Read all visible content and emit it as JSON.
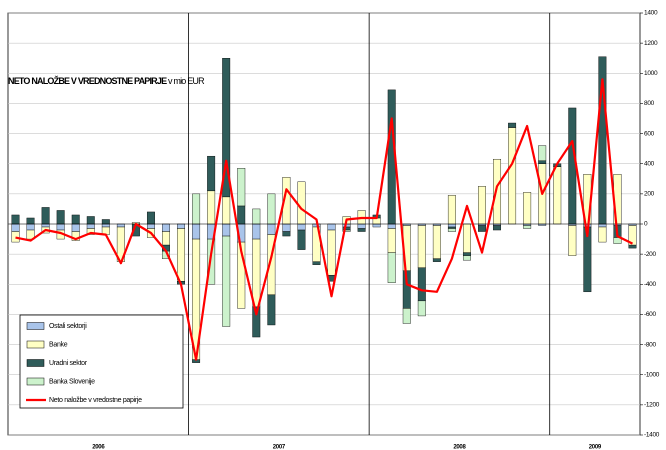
{
  "chart_data": {
    "type": "bar",
    "title": "NETO NALOŽBE V VREDNOSTNE PAPIRJE",
    "subtitle": "v mio EUR",
    "categories": [
      null,
      null,
      null,
      null,
      null,
      null,
      null,
      null,
      null,
      null,
      null,
      null,
      null,
      null,
      null,
      null,
      null,
      null,
      null,
      null,
      null,
      null,
      null,
      null,
      null,
      null,
      null,
      null,
      null,
      null,
      null,
      null,
      null,
      null,
      null,
      null,
      null,
      null,
      null,
      null,
      null,
      null
    ],
    "x_groups": [
      {
        "label": "2006",
        "size": 12
      },
      {
        "label": "2007",
        "size": 12
      },
      {
        "label": "2008",
        "size": 12
      },
      {
        "label": "2009",
        "size": 6
      }
    ],
    "ylim": [
      -1400,
      1400
    ],
    "yticks": [
      -1400,
      -1200,
      -1000,
      -800,
      -600,
      -400,
      -200,
      0,
      200,
      400,
      600,
      800,
      1000,
      1200,
      1400
    ],
    "grid": true,
    "series": [
      {
        "name": "Ostali sektorji",
        "color": "#a9c4ea",
        "values": [
          -50,
          -40,
          -20,
          -40,
          -50,
          -30,
          -20,
          -20,
          0,
          -30,
          -50,
          -30,
          -100,
          -100,
          -80,
          -120,
          -100,
          -70,
          -50,
          -40,
          -20,
          -40,
          -20,
          -30,
          -20,
          -30,
          -10,
          -10,
          -10,
          -20,
          0,
          -10,
          -10,
          0,
          -10,
          -10,
          0,
          -10,
          -20,
          -20,
          -10,
          -10
        ]
      },
      {
        "name": "Banke",
        "color": "#ffffc4",
        "values": [
          -70,
          -60,
          -40,
          -60,
          -60,
          -40,
          -50,
          -230,
          10,
          -60,
          -90,
          -350,
          -800,
          220,
          180,
          -440,
          -450,
          -400,
          310,
          280,
          -230,
          -300,
          50,
          90,
          40,
          -160,
          -300,
          -280,
          -220,
          190,
          -190,
          250,
          430,
          640,
          210,
          400,
          380,
          -200,
          330,
          -100,
          330,
          -130
        ]
      },
      {
        "name": "Uradni sektor",
        "color": "#2f5c5a",
        "values": [
          60,
          40,
          110,
          90,
          60,
          50,
          30,
          0,
          -80,
          80,
          -40,
          -20,
          -20,
          230,
          920,
          120,
          -200,
          -200,
          -30,
          -130,
          -20,
          -40,
          -20,
          -20,
          20,
          890,
          -250,
          -220,
          -20,
          -10,
          -20,
          -40,
          -30,
          30,
          0,
          20,
          20,
          770,
          -430,
          1110,
          -80,
          -20
        ]
      },
      {
        "name": "Banka Slovenije",
        "color": "#ccf2cc",
        "values": [
          0,
          0,
          0,
          0,
          0,
          0,
          0,
          0,
          0,
          0,
          -50,
          0,
          200,
          -300,
          -600,
          250,
          100,
          200,
          0,
          0,
          0,
          0,
          -10,
          0,
          0,
          -200,
          -100,
          -100,
          0,
          -20,
          -30,
          0,
          0,
          0,
          -20,
          100,
          0,
          0,
          0,
          0,
          -40,
          0
        ]
      },
      {
        "name": "Neto naložbe v vredostne papirje",
        "color": "#ff0000",
        "type": "line",
        "values": [
          -90,
          -110,
          -40,
          -60,
          -100,
          -60,
          -70,
          -260,
          0,
          -60,
          -180,
          -400,
          -900,
          -200,
          420,
          -180,
          -600,
          -220,
          230,
          100,
          30,
          -480,
          30,
          40,
          40,
          700,
          -400,
          -440,
          -450,
          -230,
          120,
          -190,
          250,
          400,
          650,
          200,
          400,
          550,
          -80,
          960,
          -80,
          -130
        ]
      }
    ]
  }
}
